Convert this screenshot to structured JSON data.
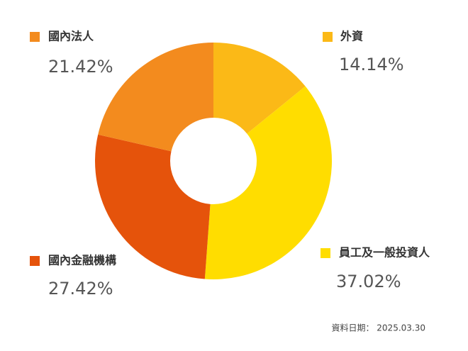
{
  "chart_data": {
    "type": "donut",
    "categories": [
      "外資",
      "員工及一般投資人",
      "國內金融機構",
      "國內法人"
    ],
    "values": [
      14.14,
      37.02,
      27.42,
      21.42
    ],
    "value_labels": [
      "14.14%",
      "37.02%",
      "27.42%",
      "21.42%"
    ],
    "colors": [
      "#fbb917",
      "#ffdd00",
      "#e5530b",
      "#f38b1e"
    ],
    "note": "資料日期： 2025.03.30"
  }
}
